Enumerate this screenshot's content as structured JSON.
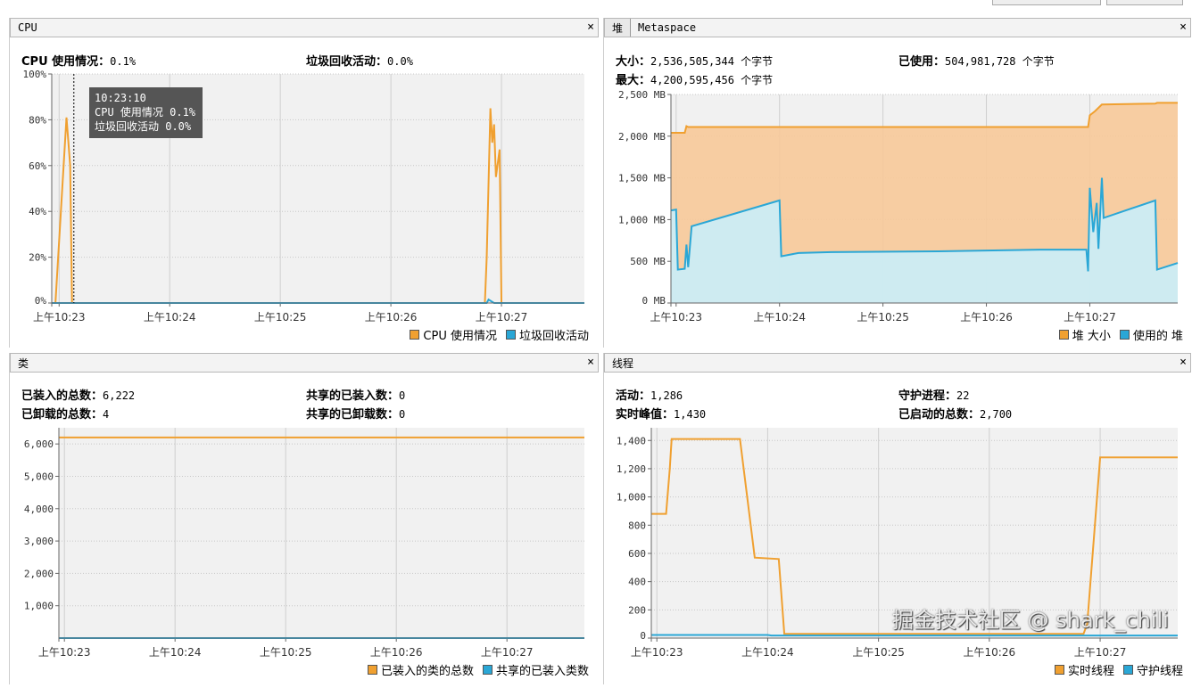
{
  "colors": {
    "orange": "#f0a030",
    "blue": "#2aa7d6",
    "orange_fill": "#f7c999",
    "blue_fill": "#c9eef9",
    "plot_bg": "#f1f1f1",
    "grid": "#cfcfcf"
  },
  "cpu": {
    "tab": "CPU",
    "close": "×",
    "stats": [
      {
        "label": "CPU 使用情况：",
        "value": "0.1%"
      },
      {
        "label": "垃圾回收活动：",
        "value": "0.0%"
      }
    ],
    "tooltip": {
      "time": "10:23:10",
      "line1": "CPU 使用情况  0.1%",
      "line2": "垃圾回收活动  0.0%",
      "cursor_time": "10:23:08"
    },
    "legend": [
      "CPU 使用情况",
      "垃圾回收活动"
    ]
  },
  "heap": {
    "tabs": [
      "堆",
      "Metaspace"
    ],
    "close": "×",
    "stats": [
      {
        "label": "大小：",
        "value": "2,536,505,344 个字节"
      },
      {
        "label": "已使用：",
        "value": "504,981,728 个字节"
      },
      {
        "label": "最大：",
        "value": "4,200,595,456 个字节"
      }
    ],
    "legend": [
      "堆 大小",
      "使用的 堆"
    ]
  },
  "classes": {
    "tab": "类",
    "close": "×",
    "stats": [
      {
        "label": "已装入的总数：",
        "value": "6,222"
      },
      {
        "label": "共享的已装入数：",
        "value": "0"
      },
      {
        "label": "已卸载的总数：",
        "value": "4"
      },
      {
        "label": "共享的已卸载数：",
        "value": "0"
      }
    ],
    "legend": [
      "已装入的类的总数",
      "共享的已装入类数"
    ]
  },
  "threads": {
    "tab": "线程",
    "close": "×",
    "stats": [
      {
        "label": "活动：",
        "value": "1,286"
      },
      {
        "label": "守护进程：",
        "value": "22"
      },
      {
        "label": "实时峰值：",
        "value": "1,430"
      },
      {
        "label": "已启动的总数：",
        "value": "2,700"
      }
    ],
    "legend": [
      "实时线程",
      "守护线程"
    ]
  },
  "watermark": "掘金技术社区 @ shark_chili",
  "chart_data": [
    {
      "id": "cpu",
      "type": "line",
      "xrange": [
        "10:22:56",
        "10:27:45"
      ],
      "ylim": [
        0,
        100
      ],
      "xticks": [
        {
          "t": "10:23:00",
          "label": "上午10:23"
        },
        {
          "t": "10:24:00",
          "label": "上午10:24"
        },
        {
          "t": "10:25:00",
          "label": "上午10:25"
        },
        {
          "t": "10:26:00",
          "label": "上午10:26"
        },
        {
          "t": "10:27:00",
          "label": "上午10:27"
        }
      ],
      "yticks": [
        {
          "v": 0,
          "label": "0%"
        },
        {
          "v": 20,
          "label": "20%"
        },
        {
          "v": 40,
          "label": "40%"
        },
        {
          "v": 60,
          "label": "60%"
        },
        {
          "v": 80,
          "label": "80%"
        },
        {
          "v": 100,
          "label": "100%"
        }
      ],
      "series": [
        {
          "name": "CPU 使用情况",
          "color": "orange",
          "points": [
            [
              "10:22:56",
              0
            ],
            [
              "10:22:58",
              0
            ],
            [
              "10:23:04",
              81
            ],
            [
              "10:23:06",
              60
            ],
            [
              "10:23:07",
              0
            ],
            [
              "10:26:51",
              0
            ],
            [
              "10:26:52",
              20
            ],
            [
              "10:26:54",
              85
            ],
            [
              "10:26:55",
              70
            ],
            [
              "10:26:56",
              78
            ],
            [
              "10:26:57",
              55
            ],
            [
              "10:26:59",
              67
            ],
            [
              "10:27:00",
              0
            ],
            [
              "10:27:45",
              0
            ]
          ]
        },
        {
          "name": "垃圾回收活动",
          "color": "blue",
          "points": [
            [
              "10:22:56",
              0
            ],
            [
              "10:26:52",
              0
            ],
            [
              "10:26:53",
              1.5
            ],
            [
              "10:26:56",
              0
            ],
            [
              "10:27:45",
              0
            ]
          ]
        }
      ]
    },
    {
      "id": "heap",
      "type": "area",
      "xrange": [
        "10:22:57",
        "10:27:51"
      ],
      "ylim": [
        0,
        2500
      ],
      "xticks": [
        {
          "t": "10:23:00",
          "label": "上午10:23"
        },
        {
          "t": "10:24:00",
          "label": "上午10:24"
        },
        {
          "t": "10:25:00",
          "label": "上午10:25"
        },
        {
          "t": "10:26:00",
          "label": "上午10:26"
        },
        {
          "t": "10:27:00",
          "label": "上午10:27"
        }
      ],
      "yticks": [
        {
          "v": 0,
          "label": "0 MB"
        },
        {
          "v": 500,
          "label": "500 MB"
        },
        {
          "v": 1000,
          "label": "1,000 MB"
        },
        {
          "v": 1500,
          "label": "1,500 MB"
        },
        {
          "v": 2000,
          "label": "2,000 MB"
        },
        {
          "v": 2500,
          "label": "2,500 MB"
        }
      ],
      "series": [
        {
          "name": "堆 大小",
          "color": "orange",
          "fill": "orange_fill",
          "points": [
            [
              "10:22:57",
              2040
            ],
            [
              "10:23:05",
              2040
            ],
            [
              "10:23:06",
              2120
            ],
            [
              "10:23:07",
              2110
            ],
            [
              "10:26:59",
              2110
            ],
            [
              "10:27:00",
              2250
            ],
            [
              "10:27:03",
              2300
            ],
            [
              "10:27:07",
              2380
            ],
            [
              "10:27:38",
              2390
            ],
            [
              "10:27:39",
              2400
            ],
            [
              "10:27:51",
              2400
            ]
          ]
        },
        {
          "name": "使用的 堆",
          "color": "blue",
          "fill": "blue_fill",
          "points": [
            [
              "10:22:57",
              1110
            ],
            [
              "10:23:00",
              1120
            ],
            [
              "10:23:01",
              400
            ],
            [
              "10:23:05",
              410
            ],
            [
              "10:23:06",
              700
            ],
            [
              "10:23:07",
              430
            ],
            [
              "10:23:09",
              920
            ],
            [
              "10:24:00",
              1230
            ],
            [
              "10:24:01",
              560
            ],
            [
              "10:24:11",
              600
            ],
            [
              "10:24:30",
              610
            ],
            [
              "10:25:32",
              620
            ],
            [
              "10:26:31",
              640
            ],
            [
              "10:26:58",
              640
            ],
            [
              "10:26:59",
              380
            ],
            [
              "10:27:00",
              1380
            ],
            [
              "10:27:02",
              850
            ],
            [
              "10:27:04",
              1200
            ],
            [
              "10:27:05",
              650
            ],
            [
              "10:27:07",
              1500
            ],
            [
              "10:27:08",
              1020
            ],
            [
              "10:27:38",
              1230
            ],
            [
              "10:27:39",
              400
            ],
            [
              "10:27:51",
              480
            ]
          ]
        }
      ]
    },
    {
      "id": "classes",
      "type": "line",
      "xrange": [
        "10:22:57",
        "10:27:42"
      ],
      "ylim": [
        0,
        6500
      ],
      "xticks": [
        {
          "t": "10:23:00",
          "label": "上午10:23"
        },
        {
          "t": "10:24:00",
          "label": "上午10:24"
        },
        {
          "t": "10:25:00",
          "label": "上午10:25"
        },
        {
          "t": "10:26:00",
          "label": "上午10:26"
        },
        {
          "t": "10:27:00",
          "label": "上午10:27"
        }
      ],
      "yticks": [
        {
          "v": 1000,
          "label": "1,000"
        },
        {
          "v": 2000,
          "label": "2,000"
        },
        {
          "v": 3000,
          "label": "3,000"
        },
        {
          "v": 4000,
          "label": "4,000"
        },
        {
          "v": 5000,
          "label": "5,000"
        },
        {
          "v": 6000,
          "label": "6,000"
        }
      ],
      "series": [
        {
          "name": "已装入的类的总数",
          "color": "orange",
          "points": [
            [
              "10:22:57",
              6200
            ],
            [
              "10:27:42",
              6200
            ]
          ]
        },
        {
          "name": "共享的已装入类数",
          "color": "blue",
          "points": [
            [
              "10:22:57",
              0
            ],
            [
              "10:27:42",
              0
            ]
          ]
        }
      ]
    },
    {
      "id": "threads",
      "type": "line",
      "xrange": [
        "10:22:57",
        "10:27:42"
      ],
      "ylim": [
        0,
        1490
      ],
      "xticks": [
        {
          "t": "10:23:00",
          "label": "上午10:23"
        },
        {
          "t": "10:24:00",
          "label": "上午10:24"
        },
        {
          "t": "10:25:00",
          "label": "上午10:25"
        },
        {
          "t": "10:26:00",
          "label": "上午10:26"
        },
        {
          "t": "10:27:00",
          "label": "上午10:27"
        }
      ],
      "yticks": [
        {
          "v": 0,
          "label": "0"
        },
        {
          "v": 200,
          "label": "200"
        },
        {
          "v": 400,
          "label": "400"
        },
        {
          "v": 600,
          "label": "600"
        },
        {
          "v": 800,
          "label": "800"
        },
        {
          "v": 1000,
          "label": "1,000"
        },
        {
          "v": 1200,
          "label": "1,200"
        },
        {
          "v": 1400,
          "label": "1,400"
        }
      ],
      "series": [
        {
          "name": "实时线程",
          "color": "orange",
          "points": [
            [
              "10:22:57",
              880
            ],
            [
              "10:23:05",
              880
            ],
            [
              "10:23:07",
              1200
            ],
            [
              "10:23:08",
              1410
            ],
            [
              "10:23:45",
              1410
            ],
            [
              "10:23:53",
              570
            ],
            [
              "10:24:06",
              560
            ],
            [
              "10:24:09",
              30
            ],
            [
              "10:26:51",
              30
            ],
            [
              "10:26:53",
              100
            ],
            [
              "10:27:00",
              1280
            ],
            [
              "10:27:42",
              1280
            ]
          ]
        },
        {
          "name": "守护线程",
          "color": "blue",
          "points": [
            [
              "10:22:57",
              22
            ],
            [
              "10:24:00",
              22
            ],
            [
              "10:24:02",
              18
            ],
            [
              "10:27:42",
              18
            ]
          ]
        }
      ]
    }
  ]
}
